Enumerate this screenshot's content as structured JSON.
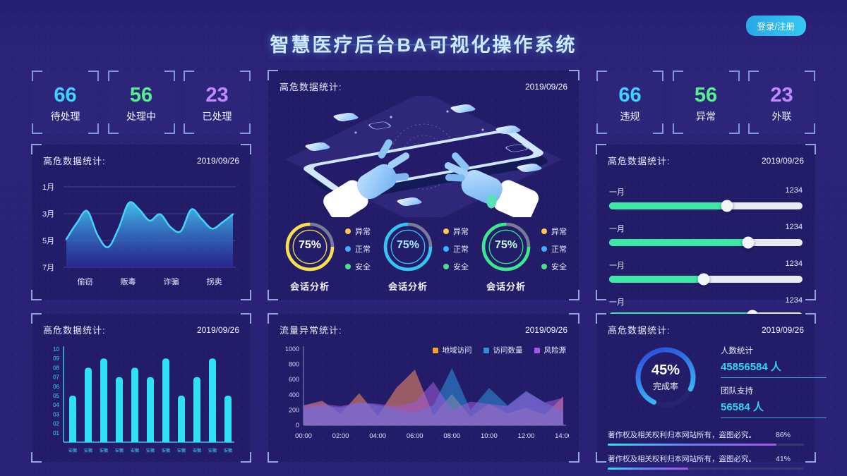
{
  "header": {
    "title": "智慧医疗后台BA可视化操作系统",
    "login_label": "登录/注册"
  },
  "stats_left": [
    {
      "value": "66",
      "label": "待处理",
      "color": "#41d0ff"
    },
    {
      "value": "56",
      "label": "处理中",
      "color": "#57ef8d"
    },
    {
      "value": "23",
      "label": "已处理",
      "color": "#bd8aff"
    }
  ],
  "stats_right": [
    {
      "value": "66",
      "label": "违规",
      "color": "#41d0ff"
    },
    {
      "value": "56",
      "label": "异常",
      "color": "#57ef8d"
    },
    {
      "value": "23",
      "label": "外联",
      "color": "#bd8aff"
    }
  ],
  "panel_titles": {
    "monthly": {
      "title": "高危数据统计:",
      "date": "2019/09/26"
    },
    "center": {
      "title": "高危数据统计:",
      "date": "2019/09/26"
    },
    "sliders": {
      "title": "高危数据统计:",
      "date": "2019/09/26"
    },
    "bars": {
      "title": "高危数据统计:",
      "date": "2019/09/26"
    },
    "traffic": {
      "title": "流量异常统计:",
      "date": "2019/09/26"
    },
    "completion": {
      "title": "高危数据统计:",
      "date": "2019/09/26"
    }
  },
  "chart_data": [
    {
      "id": "monthly_area",
      "type": "area",
      "title": "高危数据统计",
      "y_tick_labels": [
        "1月",
        "3月",
        "5月",
        "7月"
      ],
      "categories": [
        "偷窃",
        "贩毒",
        "诈骗",
        "拐卖"
      ],
      "values": [
        35,
        55,
        70,
        40,
        25,
        48,
        80,
        72,
        58,
        66,
        50,
        45,
        72,
        60,
        48,
        56,
        66
      ],
      "ylim": [
        0,
        100
      ],
      "line_color": "#45d3f7",
      "grid": true
    },
    {
      "id": "session_gauges",
      "type": "donut-group",
      "track_color": "#81869f",
      "gauges": [
        {
          "percent": 75,
          "percent_text": "75%",
          "percent_color": "#ffffff",
          "label": "会话分析",
          "color": "#f7e04b"
        },
        {
          "percent": 75,
          "percent_text": "75%",
          "percent_color": "#a8e6ff",
          "label": "会话分析",
          "color": "#35c5f5"
        },
        {
          "percent": 75,
          "percent_text": "75%",
          "percent_color": "#c0f7d9",
          "label": "会话分析",
          "color": "#3ae98f"
        }
      ],
      "legend": [
        {
          "label": "异常",
          "color": "#ffc94d"
        },
        {
          "label": "正常",
          "color": "#3db1ff"
        },
        {
          "label": "安全",
          "color": "#4ce08a"
        }
      ]
    },
    {
      "id": "month_sliders",
      "type": "slider-list",
      "fill_color": "#3ce9a4",
      "rows": [
        {
          "label": "一月",
          "value": "1234",
          "percent": 61
        },
        {
          "label": "一月",
          "value": "1234",
          "percent": 72
        },
        {
          "label": "一月",
          "value": "1234",
          "percent": 49
        },
        {
          "label": "一月",
          "value": "1234",
          "percent": 74
        }
      ]
    },
    {
      "id": "province_bars",
      "type": "bar",
      "categories": [
        "安徽",
        "安徽",
        "安徽",
        "安徽",
        "安徽",
        "安徽",
        "安徽",
        "安徽",
        "安徽",
        "安徽",
        "安徽"
      ],
      "values": [
        5,
        8,
        9,
        7,
        8,
        7,
        9,
        5,
        7,
        9,
        5
      ],
      "ylim": [
        0,
        10
      ],
      "y_tick_labels": [
        "01",
        "02",
        "03",
        "04",
        "05",
        "06",
        "07",
        "08",
        "09",
        "10"
      ],
      "bar_color": "#2fe0f5"
    },
    {
      "id": "traffic_area",
      "type": "area",
      "title": "流量异常统计",
      "x_tick_labels": [
        "00:00",
        "02:00",
        "04:00",
        "06:00",
        "08:00",
        "10:00",
        "12:00",
        "14:00"
      ],
      "ylim": [
        0,
        1000
      ],
      "y_ticks": [
        0,
        200,
        400,
        600,
        800,
        1000
      ],
      "legend_position": "top-right",
      "series": [
        {
          "name": "地域访问",
          "color": "#f5a623",
          "fill": "#f08a65",
          "values": [
            260,
            320,
            150,
            420,
            120,
            490,
            730,
            130,
            410,
            110,
            280,
            160,
            230,
            140,
            380
          ]
        },
        {
          "name": "访问数量",
          "color": "#2f8fd8",
          "fill": "#2f8fd8",
          "values": [
            220,
            260,
            230,
            300,
            260,
            210,
            160,
            260,
            750,
            200,
            490,
            260,
            450,
            300,
            180
          ]
        },
        {
          "name": "风险源",
          "color": "#a45ae0",
          "fill": "#9b59d6",
          "values": [
            260,
            280,
            250,
            300,
            280,
            250,
            300,
            570,
            200,
            310,
            280,
            250,
            440,
            300,
            360
          ]
        }
      ]
    },
    {
      "id": "completion_gauge",
      "type": "donut",
      "percent": 45,
      "percent_text": "45%",
      "label": "完成率",
      "stats": [
        {
          "label": "人数统计",
          "value": "45856584 人"
        },
        {
          "label": "团队支持",
          "value": "56584 人"
        }
      ],
      "progress_rows": [
        {
          "text": "著作权及相关权利归本网站所有，盗图必究。",
          "percent": "86%"
        },
        {
          "text": "著作权及相关权利归本网站所有，盗图必究。",
          "percent": "41%"
        }
      ]
    }
  ]
}
